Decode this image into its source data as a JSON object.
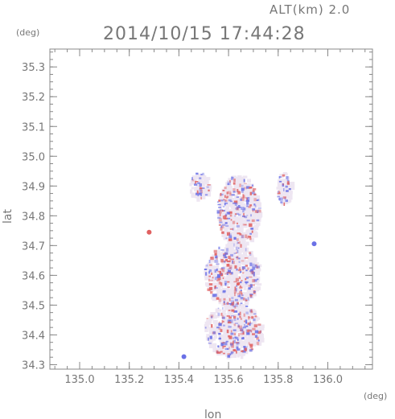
{
  "chart_data": {
    "type": "heatmap",
    "title": "2014/10/15 17:44:28",
    "altitude_label": "ALT(km)  2.0",
    "xlabel": "lon",
    "ylabel": "lat",
    "x_unit": "(deg)",
    "y_unit": "(deg)",
    "xlim": [
      134.88,
      136.18
    ],
    "ylim": [
      34.285,
      35.36
    ],
    "x_ticks": [
      "135.0",
      "135.2",
      "135.4",
      "135.6",
      "135.8",
      "136.0"
    ],
    "y_ticks": [
      "34.3",
      "34.4",
      "34.5",
      "34.6",
      "34.7",
      "34.8",
      "34.9",
      "35.0",
      "35.1",
      "35.2",
      "35.3"
    ],
    "x_tick_values": [
      135.0,
      135.2,
      135.4,
      135.6,
      135.8,
      136.0
    ],
    "y_tick_values": [
      34.3,
      34.4,
      34.5,
      34.6,
      34.7,
      34.8,
      34.9,
      35.0,
      35.1,
      35.2,
      35.3
    ],
    "minor_x_step": 0.05,
    "minor_y_step": 0.025,
    "colors": {
      "positive": "#e06060",
      "negative": "#6a70e6",
      "faint": "#eee6f2",
      "axis": "#888888",
      "text": "#777777"
    },
    "regions": [
      {
        "name": "north-west patch",
        "lon": [
          135.44,
          135.52
        ],
        "lat": [
          34.86,
          34.95
        ]
      },
      {
        "name": "north-central cluster",
        "lon": [
          135.55,
          135.72
        ],
        "lat": [
          34.7,
          34.94
        ]
      },
      {
        "name": "north-east patch",
        "lon": [
          135.79,
          135.85
        ],
        "lat": [
          34.84,
          34.95
        ]
      },
      {
        "name": "central body",
        "lon": [
          135.5,
          135.72
        ],
        "lat": [
          34.5,
          34.71
        ]
      },
      {
        "name": "southern body",
        "lon": [
          135.5,
          135.73
        ],
        "lat": [
          34.33,
          34.51
        ]
      }
    ],
    "isolated_points": [
      {
        "lon": 135.28,
        "lat": 34.745,
        "sign": "positive"
      },
      {
        "lon": 135.945,
        "lat": 34.706,
        "sign": "negative"
      },
      {
        "lon": 135.42,
        "lat": 34.327,
        "sign": "negative"
      }
    ]
  }
}
